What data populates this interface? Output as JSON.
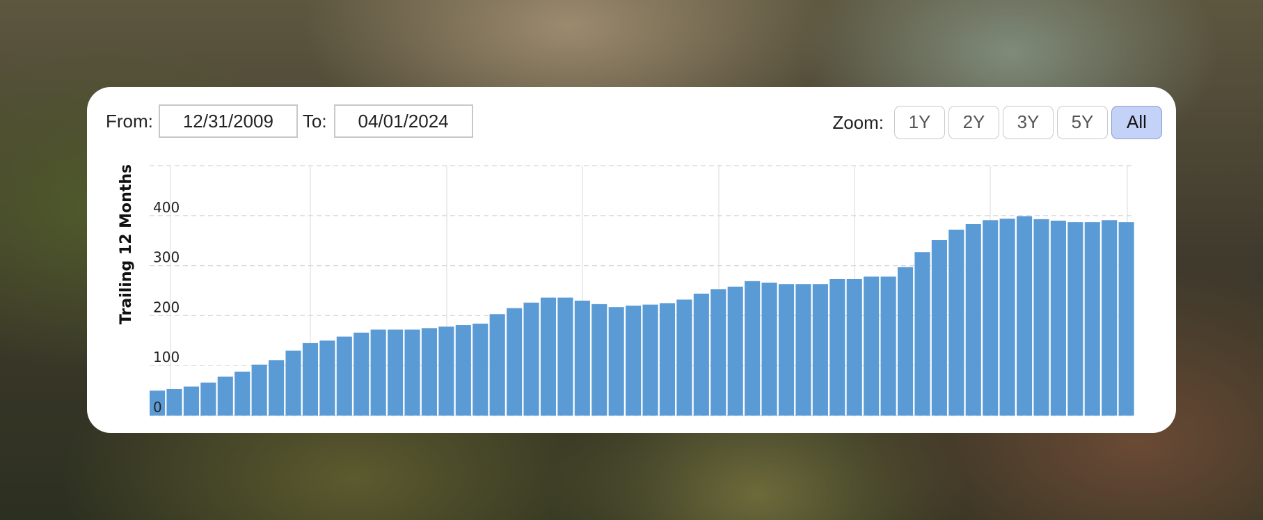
{
  "range": {
    "from_label": "From:",
    "from_value": "12/31/2009",
    "to_label": "To:",
    "to_value": "04/01/2024"
  },
  "zoom": {
    "label": "Zoom:",
    "buttons": [
      "1Y",
      "2Y",
      "3Y",
      "5Y",
      "All"
    ],
    "active": "All"
  },
  "colors": {
    "bar": "#5b9bd5",
    "active_zoom": "#c5d2f7"
  },
  "chart_data": {
    "type": "bar",
    "ylabel": "Trailing 12 Months",
    "xlabel": "",
    "title": "",
    "ylim": [
      0,
      500
    ],
    "yticks": [
      0,
      100,
      200,
      300,
      400
    ],
    "grid": true,
    "values": [
      50,
      53,
      58,
      66,
      78,
      88,
      102,
      111,
      130,
      145,
      150,
      158,
      166,
      172,
      172,
      172,
      175,
      178,
      181,
      184,
      203,
      215,
      226,
      236,
      236,
      230,
      223,
      217,
      220,
      222,
      225,
      232,
      244,
      253,
      258,
      269,
      266,
      263,
      263,
      263,
      273,
      273,
      278,
      278,
      297,
      327,
      351,
      372,
      383,
      391,
      394,
      399,
      393,
      390,
      387,
      387,
      391,
      387
    ]
  }
}
